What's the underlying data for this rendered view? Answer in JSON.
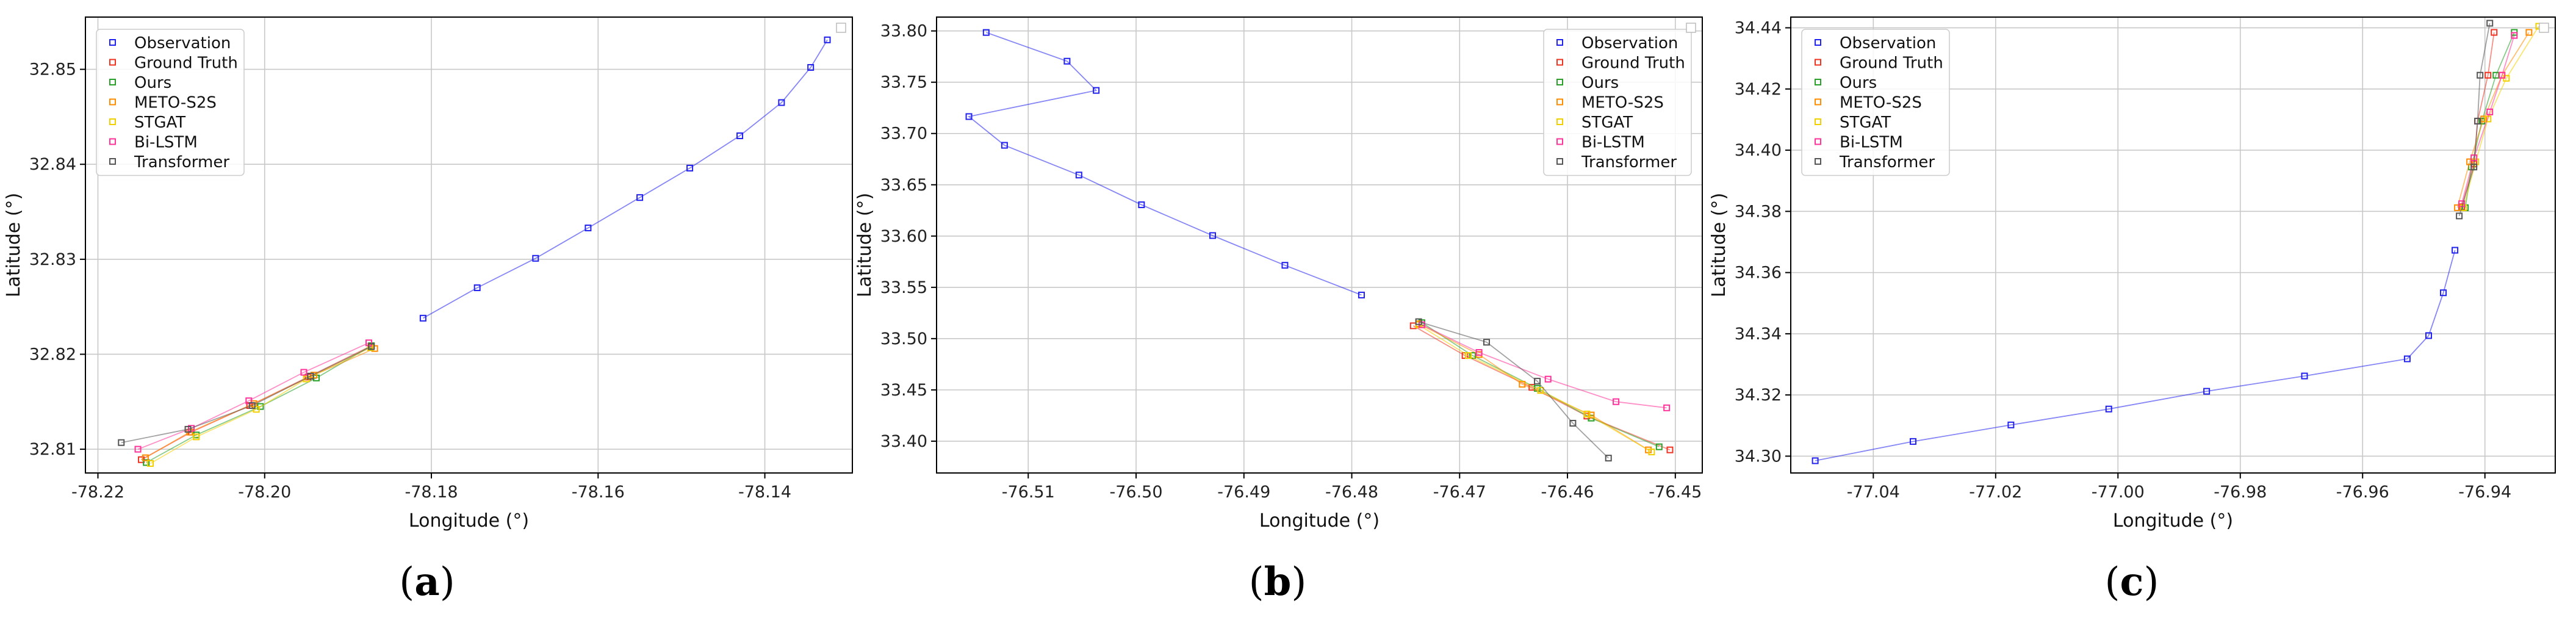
{
  "colors": {
    "Observation": "#2222ee",
    "Ground Truth": "#ee3322",
    "Ours": "#2aa02a",
    "METO-S2S": "#ff8c00",
    "STGAT": "#f2d000",
    "Bi-LSTM": "#ff3399",
    "Transformer": "#555555"
  },
  "legend_order": [
    "Observation",
    "Ground Truth",
    "Ours",
    "METO-S2S",
    "STGAT",
    "Bi-LSTM",
    "Transformer"
  ],
  "chart_data": [
    {
      "type": "line",
      "sublabel": "a",
      "xlabel": "Longitude (°)",
      "ylabel": "Latitude (°)",
      "xlim": [
        -78.2215,
        -78.1295
      ],
      "ylim": [
        32.8075,
        32.8555
      ],
      "xticks": [
        "-78.22",
        "-78.20",
        "-78.18",
        "-78.16",
        "-78.14"
      ],
      "xtick_values": [
        -78.22,
        -78.2,
        -78.18,
        -78.16,
        -78.14
      ],
      "yticks": [
        "32.81",
        "32.82",
        "32.83",
        "32.84",
        "32.85"
      ],
      "ytick_values": [
        32.81,
        32.82,
        32.83,
        32.84,
        32.85
      ],
      "grid": true,
      "legend_loc": "upper left",
      "series": [
        {
          "name": "Observation",
          "x": [
            -78.181,
            -78.1745,
            -78.1675,
            -78.1612,
            -78.155,
            -78.149,
            -78.143,
            -78.138,
            -78.1345,
            -78.1325
          ],
          "y": [
            32.8238,
            32.827,
            32.8301,
            32.8333,
            32.8365,
            32.8396,
            32.843,
            32.8465,
            32.8502,
            32.8531
          ]
        },
        {
          "name": "Ground Truth",
          "x": [
            -78.1872,
            -78.1948,
            -78.2018,
            -78.2088,
            -78.2148
          ],
          "y": [
            32.8209,
            32.8176,
            32.8146,
            32.8118,
            32.8089
          ]
        },
        {
          "name": "Ours",
          "x": [
            -78.1872,
            -78.1938,
            -78.2005,
            -78.2082,
            -78.2142
          ],
          "y": [
            32.8209,
            32.8175,
            32.8145,
            32.8115,
            32.8086
          ]
        },
        {
          "name": "METO-S2S",
          "x": [
            -78.1868,
            -78.1941,
            -78.2013,
            -78.209,
            -78.2143
          ],
          "y": [
            32.8206,
            32.8178,
            32.8148,
            32.8118,
            32.8091
          ]
        },
        {
          "name": "STGAT",
          "x": [
            -78.1873,
            -78.195,
            -78.201,
            -78.2082,
            -78.2137
          ],
          "y": [
            32.8207,
            32.8174,
            32.8142,
            32.8113,
            32.8085
          ]
        },
        {
          "name": "Bi-LSTM",
          "x": [
            -78.1875,
            -78.1953,
            -78.2019,
            -78.2088,
            -78.2152
          ],
          "y": [
            32.8212,
            32.8181,
            32.8151,
            32.8122,
            32.81
          ]
        },
        {
          "name": "Transformer",
          "x": [
            -78.1872,
            -78.1945,
            -78.2015,
            -78.2092,
            -78.2172
          ],
          "y": [
            32.8208,
            32.8177,
            32.8146,
            32.8121,
            32.8107
          ]
        }
      ]
    },
    {
      "type": "line",
      "sublabel": "b",
      "xlabel": "Longitude (°)",
      "ylabel": "Latitude (°)",
      "xlim": [
        -76.5185,
        -76.4475
      ],
      "ylim": [
        33.369,
        33.8135
      ],
      "xticks": [
        "-76.51",
        "-76.50",
        "-76.49",
        "-76.48",
        "-76.47",
        "-76.46",
        "-76.45"
      ],
      "xtick_values": [
        -76.51,
        -76.5,
        -76.49,
        -76.48,
        -76.47,
        -76.46,
        -76.45
      ],
      "yticks": [
        "33.40",
        "33.45",
        "33.50",
        "33.55",
        "33.60",
        "33.65",
        "33.70",
        "33.75",
        "33.80"
      ],
      "ytick_values": [
        33.4,
        33.45,
        33.5,
        33.55,
        33.6,
        33.65,
        33.7,
        33.75,
        33.8
      ],
      "grid": true,
      "legend_loc": "upper right",
      "series": [
        {
          "name": "Observation",
          "x": [
            -76.5139,
            -76.5064,
            -76.5037,
            -76.5155,
            -76.5122,
            -76.5053,
            -76.4995,
            -76.4929,
            -76.4862,
            -76.4791
          ],
          "y": [
            33.7985,
            33.7705,
            33.742,
            33.7165,
            33.6885,
            33.6595,
            33.6305,
            33.6005,
            33.5715,
            33.5425
          ]
        },
        {
          "name": "Ground Truth",
          "x": [
            -76.4743,
            -76.4695,
            -76.4633,
            -76.4582,
            -76.4505
          ],
          "y": [
            33.5125,
            33.4835,
            33.4525,
            33.4245,
            33.3915
          ]
        },
        {
          "name": "Ours",
          "x": [
            -76.4735,
            -76.4688,
            -76.4628,
            -76.4578,
            -76.4515
          ],
          "y": [
            33.5155,
            33.4835,
            33.4515,
            33.4225,
            33.3945
          ]
        },
        {
          "name": "METO-S2S",
          "x": [
            -76.4738,
            -76.4682,
            -76.4642,
            -76.4578,
            -76.4525
          ],
          "y": [
            33.5145,
            33.4845,
            33.4555,
            33.4255,
            33.3915
          ]
        },
        {
          "name": "STGAT",
          "x": [
            -76.4738,
            -76.4692,
            -76.4625,
            -76.4582,
            -76.4522
          ],
          "y": [
            33.5135,
            33.4835,
            33.4495,
            33.4265,
            33.3895
          ]
        },
        {
          "name": "Bi-LSTM",
          "x": [
            -76.4735,
            -76.4682,
            -76.4618,
            -76.4555,
            -76.4508
          ],
          "y": [
            33.5135,
            33.4865,
            33.4605,
            33.4385,
            33.4325
          ]
        },
        {
          "name": "Transformer",
          "x": [
            -76.4738,
            -76.4675,
            -76.4628,
            -76.4595,
            -76.4562
          ],
          "y": [
            33.5165,
            33.4965,
            33.4585,
            33.4175,
            33.3835
          ]
        }
      ]
    },
    {
      "type": "line",
      "sublabel": "c",
      "xlabel": "Longitude (°)",
      "ylabel": "Latitude (°)",
      "xlim": [
        -77.0535,
        -76.9285
      ],
      "ylim": [
        34.2945,
        34.4435
      ],
      "xticks": [
        "-77.04",
        "-77.02",
        "-77.00",
        "-76.98",
        "-76.96",
        "-76.94"
      ],
      "xtick_values": [
        -77.04,
        -77.02,
        -77.0,
        -76.98,
        -76.96,
        -76.94
      ],
      "yticks": [
        "34.30",
        "34.32",
        "34.34",
        "34.36",
        "34.38",
        "34.40",
        "34.42",
        "34.44"
      ],
      "ytick_values": [
        34.3,
        34.32,
        34.34,
        34.36,
        34.38,
        34.4,
        34.42,
        34.44
      ],
      "grid": true,
      "legend_loc": "upper left",
      "series": [
        {
          "name": "Observation",
          "x": [
            -77.0495,
            -77.0335,
            -77.0175,
            -77.0015,
            -76.9855,
            -76.9695,
            -76.9527,
            -76.9492,
            -76.9468,
            -76.9449
          ],
          "y": [
            34.2985,
            34.3048,
            34.3102,
            34.3154,
            34.3212,
            34.3262,
            34.3318,
            34.3394,
            34.3534,
            34.3673
          ]
        },
        {
          "name": "Ground Truth",
          "x": [
            -76.9438,
            -76.9418,
            -76.9412,
            -76.9395,
            -76.9385
          ],
          "y": [
            34.3815,
            34.3955,
            34.4095,
            34.4245,
            34.4385
          ]
        },
        {
          "name": "Ours",
          "x": [
            -76.9432,
            -76.9422,
            -76.9405,
            -76.9382,
            -76.9352
          ],
          "y": [
            34.3812,
            34.3945,
            34.4095,
            34.4245,
            34.4385
          ]
        },
        {
          "name": "METO-S2S",
          "x": [
            -76.9445,
            -76.9425,
            -76.9402,
            -76.9372,
            -76.9328
          ],
          "y": [
            34.3812,
            34.3962,
            34.4102,
            34.4245,
            34.4385
          ]
        },
        {
          "name": "STGAT",
          "x": [
            -76.9435,
            -76.9415,
            -76.9395,
            -76.9365,
            -76.9312
          ],
          "y": [
            34.3812,
            34.3962,
            34.4102,
            34.4235,
            34.4405
          ]
        },
        {
          "name": "Bi-LSTM",
          "x": [
            -76.9438,
            -76.9418,
            -76.9392,
            -76.9372,
            -76.9352
          ],
          "y": [
            34.3825,
            34.3975,
            34.4125,
            34.4245,
            34.4375
          ]
        },
        {
          "name": "Transformer",
          "x": [
            -76.9442,
            -76.9418,
            -76.9412,
            -76.9408,
            -76.9392
          ],
          "y": [
            34.3785,
            34.3945,
            34.4095,
            34.4245,
            34.4415
          ]
        }
      ]
    }
  ]
}
